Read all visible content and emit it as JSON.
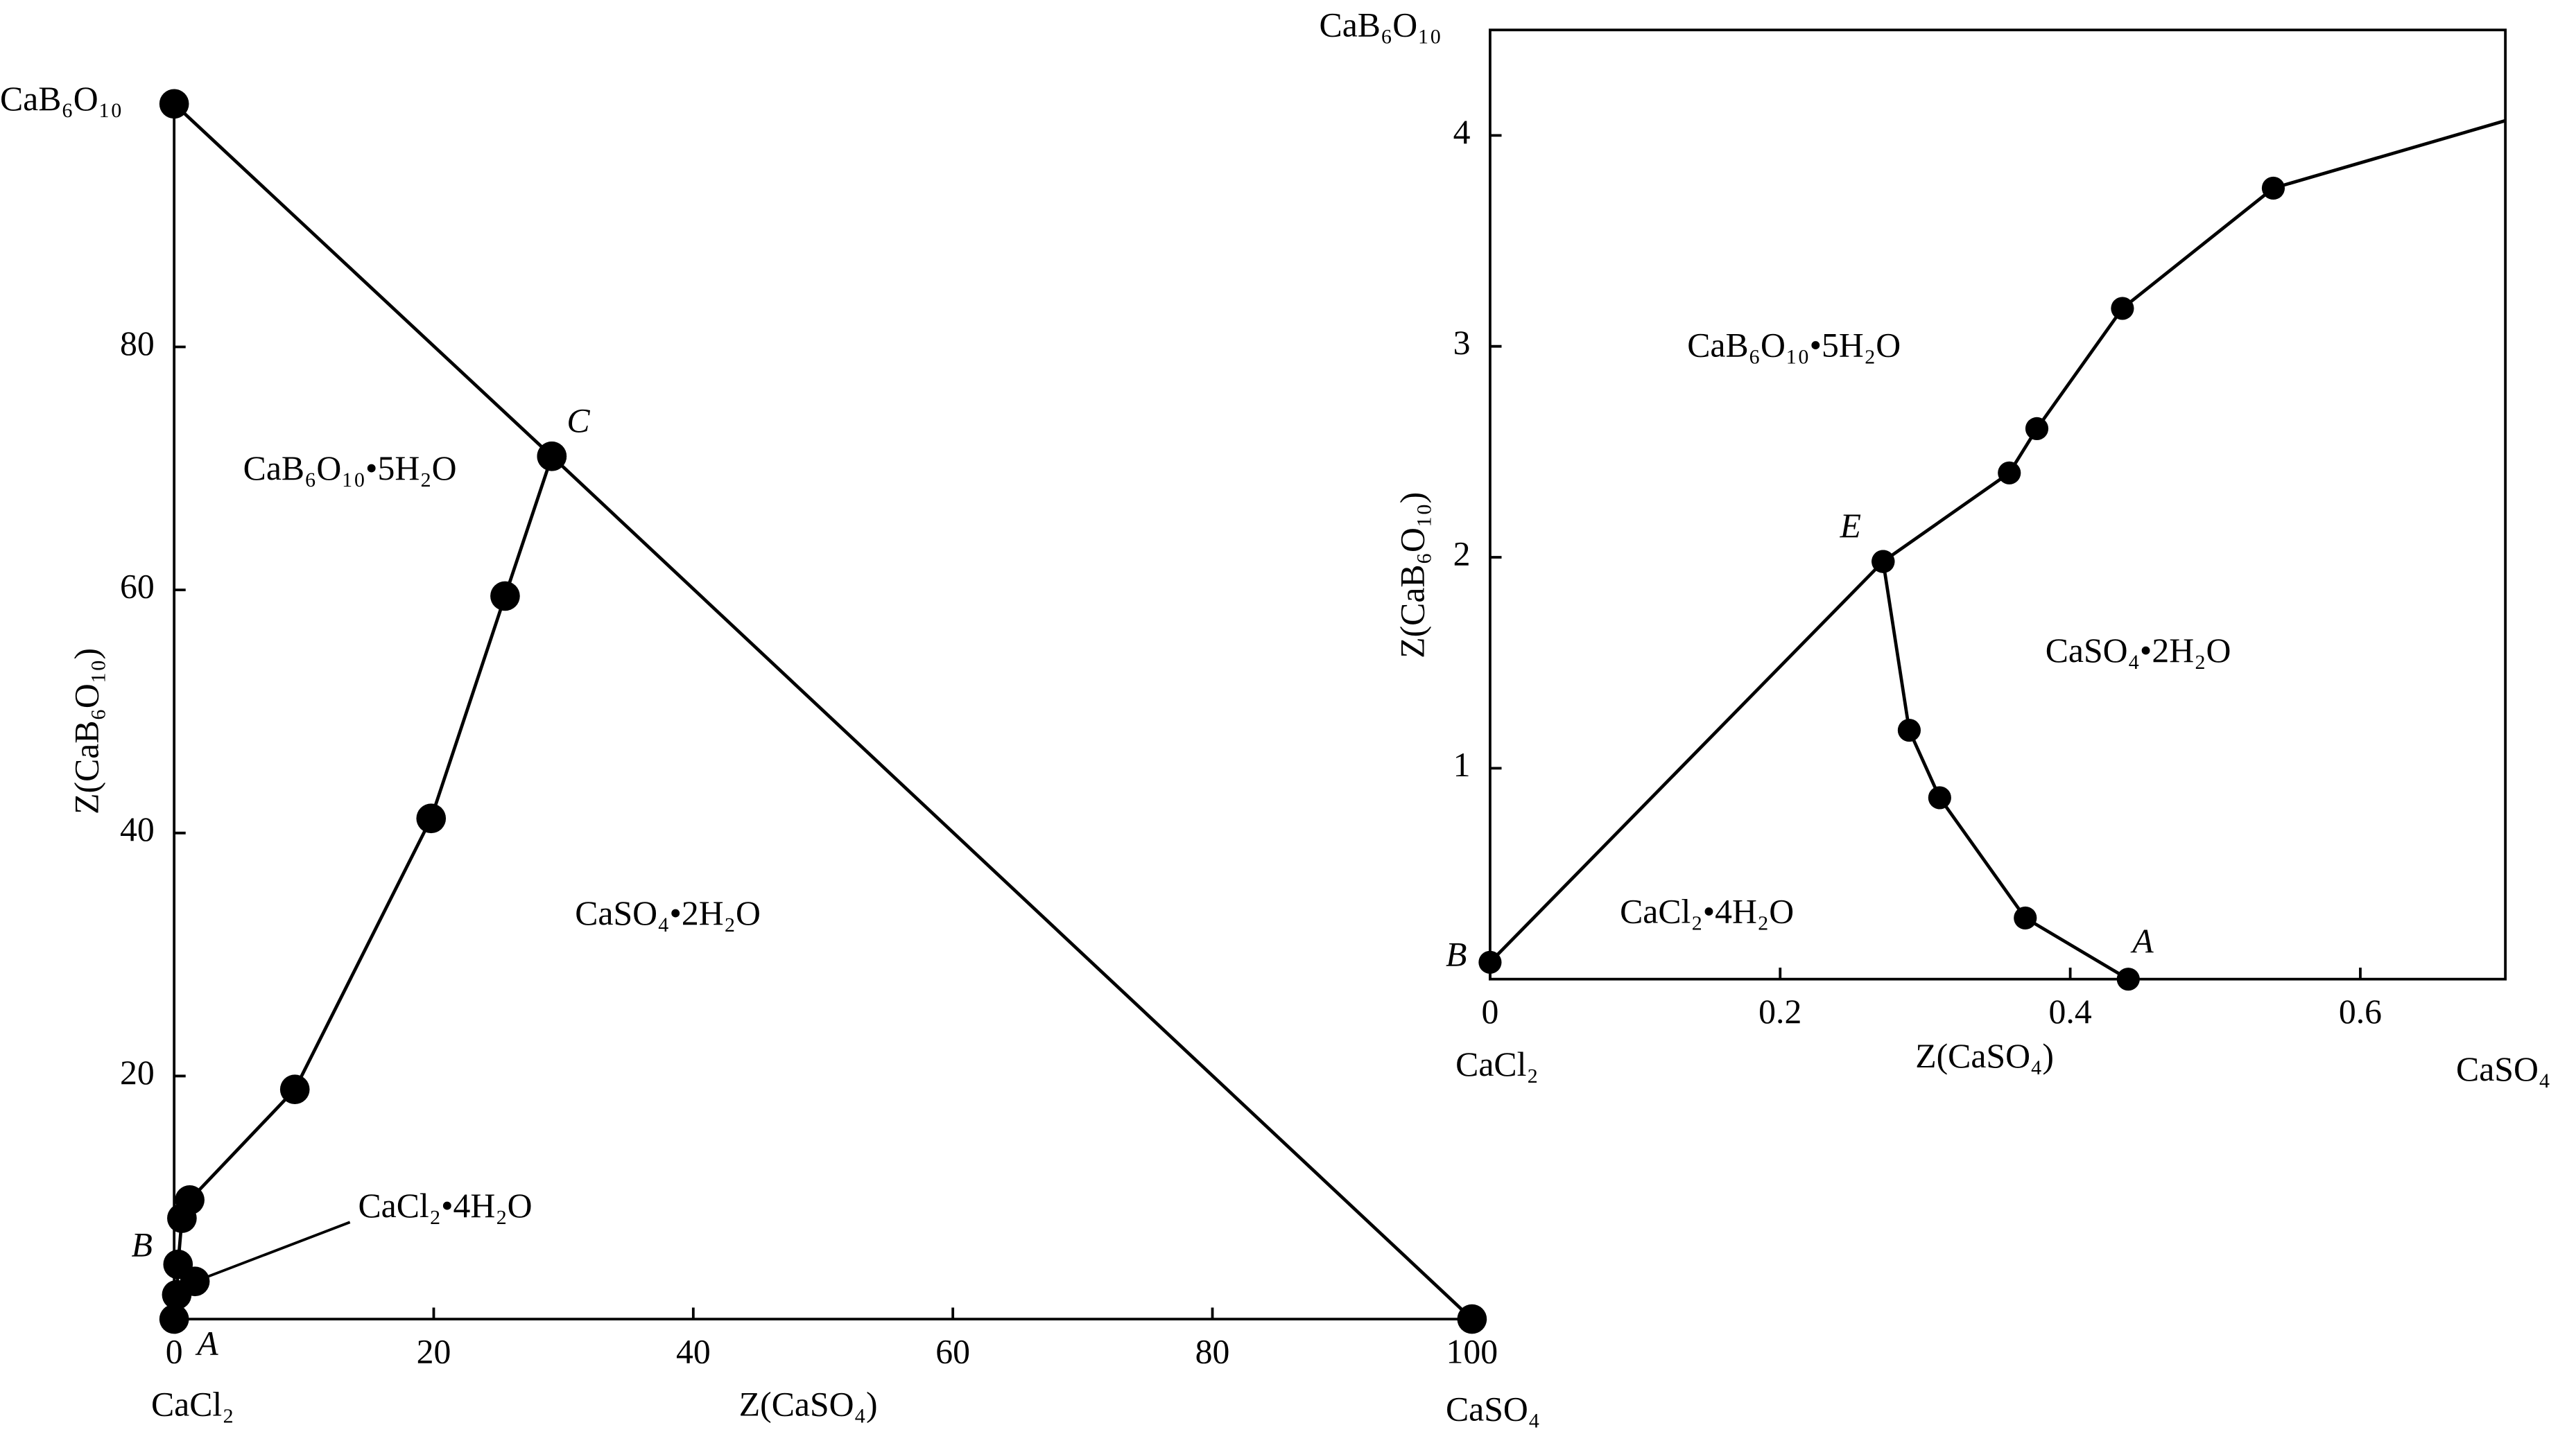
{
  "chart_data": [
    {
      "type": "line",
      "frame": "axes",
      "marker_size": 9,
      "xlabel": "Z(CaSO₄)",
      "ylabel": "Z(CaB₆O₁₀)",
      "xlim": [
        0,
        100
      ],
      "ylim": [
        0,
        100
      ],
      "xticks": [
        0,
        20,
        40,
        60,
        80,
        100
      ],
      "yticks": [
        20,
        40,
        60,
        80
      ],
      "series": [
        {
          "color": "#000000",
          "markers": true,
          "x": [
            0,
            29.1,
            100
          ],
          "values": [
            100,
            71,
            0
          ]
        },
        {
          "color": "#000000",
          "markers": true,
          "x": [
            29.1,
            25.5,
            19.8,
            9.3,
            1.2,
            0.6,
            0.3,
            0.2,
            0
          ],
          "values": [
            71,
            59.5,
            41.2,
            18.9,
            9.8,
            8.3,
            4.5,
            2,
            0
          ]
        },
        {
          "color": "#000000",
          "markers": true,
          "line": false,
          "x": [
            1.6
          ],
          "values": [
            3.1
          ]
        }
      ],
      "labels": [
        "CaB₆O₁₀",
        "CaCl₂",
        "CaSO₄",
        "C",
        "B",
        "A",
        "CaB₆O₁₀•5H₂O",
        "CaSO₄•2H₂O",
        "CaCl₂•4H₂O"
      ]
    },
    {
      "type": "line",
      "frame": "box",
      "marker_size": 7,
      "xlabel": "Z(CaSO₄)",
      "ylabel": "Z(CaB₆O₁₀)",
      "xlim": [
        0,
        0.7
      ],
      "ylim": [
        0,
        4.5
      ],
      "xticks": [
        0,
        0.2,
        0.4,
        0.6
      ],
      "yticks": [
        1,
        2,
        3,
        4
      ],
      "series": [
        {
          "color": "#000000",
          "markers": true,
          "x": [
            0,
            0.271
          ],
          "values": [
            0.08,
            1.98
          ]
        },
        {
          "color": "#000000",
          "markers": true,
          "x": [
            0.271,
            0.358,
            0.377,
            0.436,
            0.54
          ],
          "values": [
            1.98,
            2.4,
            2.61,
            3.18,
            3.75
          ]
        },
        {
          "color": "#000000",
          "markers": false,
          "x": [
            0.54,
            0.7
          ],
          "values": [
            3.75,
            4.07
          ]
        },
        {
          "color": "#000000",
          "markers": true,
          "x": [
            0.271,
            0.289,
            0.31,
            0.369,
            0.44
          ],
          "values": [
            1.98,
            1.18,
            0.86,
            0.29,
            0
          ]
        }
      ],
      "labels": [
        "CaB₆O₁₀",
        "CaCl₂",
        "CaSO₄",
        "E",
        "B",
        "A",
        "CaB₆O₁₀•5H₂O",
        "CaSO₄•2H₂O",
        "CaCl₂•4H₂O"
      ]
    }
  ]
}
